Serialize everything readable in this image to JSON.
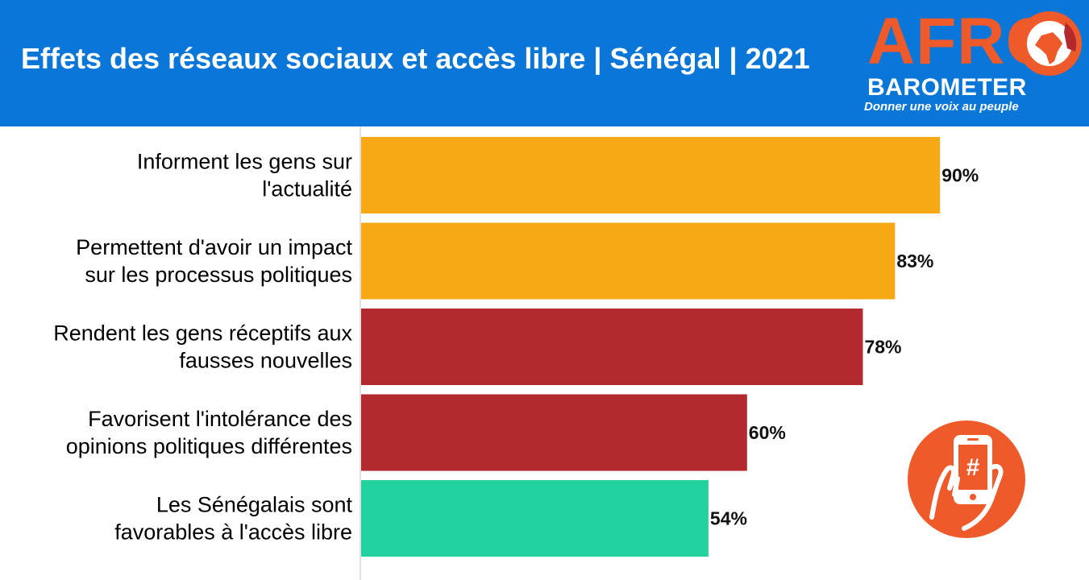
{
  "title": "Effets des réseaux sociaux et accès libre | Sénégal | 2021",
  "logo": {
    "brand_top": "AFRO",
    "brand_bottom": "BAROMETER",
    "tagline": "Donner une voix au peuple"
  },
  "colors": {
    "header": "#0a76d8",
    "orange": "#f7a815",
    "red": "#b2292e",
    "green": "#22d3a0",
    "logo_orange": "#ef5a2a"
  },
  "icons": [
    "africa-globe-icon",
    "smartphone-hashtag-icon"
  ],
  "chart_data": {
    "type": "bar",
    "orientation": "horizontal",
    "categories": [
      [
        "Informent les gens sur",
        "l'actualité"
      ],
      [
        "Permettent d'avoir un impact",
        "sur les processus politiques"
      ],
      [
        "Rendent les gens réceptifs aux",
        "fausses nouvelles"
      ],
      [
        "Favorisent l'intolérance des",
        "opinions politiques différentes"
      ],
      [
        "Les Sénégalais sont",
        "favorables à l'accès libre"
      ]
    ],
    "values": [
      90,
      83,
      78,
      60,
      54
    ],
    "value_labels": [
      "90%",
      "83%",
      "78%",
      "60%",
      "54%"
    ],
    "bar_colors": [
      "#f7a815",
      "#f7a815",
      "#b2292e",
      "#b2292e",
      "#22d3a0"
    ],
    "xlim": [
      0,
      100
    ],
    "grid": false,
    "legend": "none"
  }
}
